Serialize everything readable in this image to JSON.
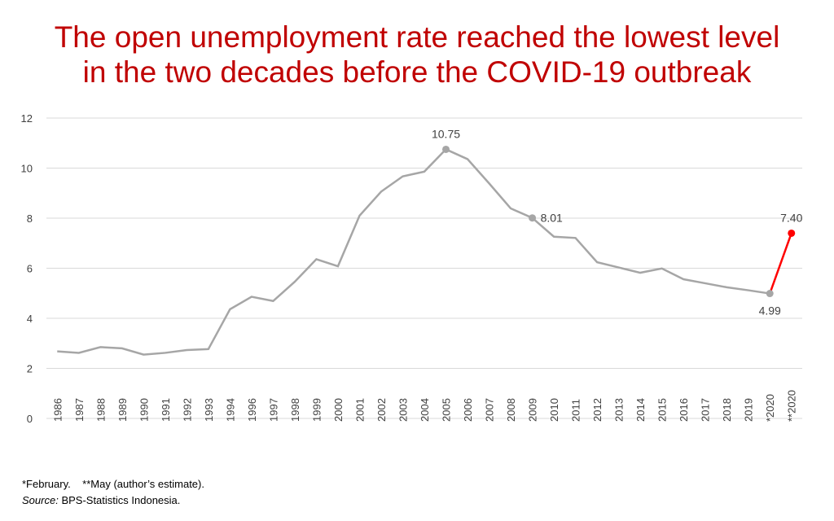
{
  "chart_data": {
    "type": "line",
    "title_lines": [
      "The open unemployment rate reached the lowest level",
      "in the two decades before the COVID-19 outbreak"
    ],
    "categories": [
      "1986",
      "1987",
      "1988",
      "1989",
      "1990",
      "1991",
      "1992",
      "1993",
      "1994",
      "1996",
      "1997",
      "1998",
      "1999",
      "2000",
      "2001",
      "2002",
      "2003",
      "2004",
      "2005",
      "2006",
      "2007",
      "2008",
      "2009",
      "2010",
      "2011",
      "2012",
      "2013",
      "2014",
      "2015",
      "2016",
      "2017",
      "2018",
      "2019",
      "*2020",
      "**2020"
    ],
    "values": [
      2.68,
      2.62,
      2.85,
      2.8,
      2.55,
      2.62,
      2.73,
      2.77,
      4.36,
      4.86,
      4.69,
      5.46,
      6.36,
      6.08,
      8.1,
      9.06,
      9.67,
      9.86,
      10.75,
      10.36,
      9.39,
      8.39,
      8.01,
      7.26,
      7.21,
      6.24,
      6.03,
      5.82,
      5.99,
      5.56,
      5.4,
      5.24,
      5.12,
      4.99,
      7.4
    ],
    "value_labels": [
      null,
      null,
      null,
      null,
      null,
      null,
      null,
      null,
      null,
      null,
      null,
      null,
      null,
      null,
      null,
      null,
      null,
      null,
      "10.75",
      null,
      null,
      null,
      "8.01",
      null,
      null,
      null,
      null,
      null,
      null,
      null,
      null,
      null,
      null,
      "4.99",
      "7.40"
    ],
    "color": "#a6a6a6",
    "highlight_color": "#ff0000",
    "ylim": [
      0,
      12
    ],
    "yticks": [
      0,
      2,
      4,
      6,
      8,
      10,
      12
    ],
    "grid": true,
    "footnote": "*February.    **May (author’s estimate).",
    "source_label": "Source:",
    "source": "BPS-Statistics Indonesia."
  }
}
